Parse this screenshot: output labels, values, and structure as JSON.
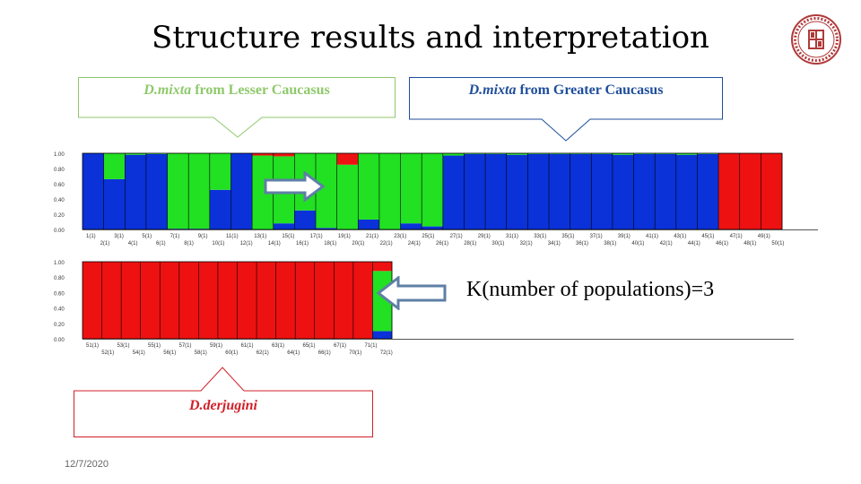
{
  "title": "Structure results and interpretation",
  "callouts": {
    "lesser": {
      "species": "D.mixta",
      "rest": " from Lesser Caucasus",
      "color": "#8fc96b"
    },
    "greater": {
      "species": "D.mixta",
      "rest": " from Greater Caucasus",
      "color": "#1f4e9c"
    },
    "derjugini": {
      "species": "D.derjugini",
      "color": "#d0212a"
    }
  },
  "k_text": "K(number of populations)=3",
  "date": "12/7/2020",
  "colors": {
    "blue": "#0a32d8",
    "green": "#22e022",
    "red": "#ee1111"
  },
  "chart_data": [
    {
      "type": "bar",
      "stacked": true,
      "y_ticks": [
        "1.00",
        "0.80",
        "0.60",
        "0.40",
        "0.20",
        "0.00"
      ],
      "ylim": [
        0,
        1
      ],
      "labels_row1": [
        "1(1)",
        "3(1)",
        "5(1)",
        "7(1)",
        "9(1)",
        "11(1)",
        "13(1)",
        "15(1)",
        "17(1)",
        "19(1)",
        "21(1)",
        "23(1)",
        "25(1)",
        "27(1)",
        "29(1)",
        "31(1)",
        "33(1)",
        "35(1)",
        "37(1)",
        "39(1)",
        "41(1)",
        "43(1)",
        "45(1)",
        "47(1)",
        "49(1)"
      ],
      "labels_row2": [
        "2(1)",
        "4(1)",
        "6(1)",
        "8(1)",
        "10(1)",
        "12(1)",
        "14(1)",
        "16(1)",
        "18(1)",
        "20(1)",
        "22(1)",
        "24(1)",
        "26(1)",
        "28(1)",
        "30(1)",
        "32(1)",
        "34(1)",
        "36(1)",
        "38(1)",
        "40(1)",
        "42(1)",
        "44(1)",
        "46(1)",
        "48(1)",
        "50(1)"
      ],
      "series": [
        {
          "name": "",
          "color": "#0a32d8",
          "values": [
            1.0,
            0.66,
            0.98,
            0.99,
            0.01,
            0.01,
            0.52,
            1.0,
            0.0,
            0.08,
            0.25,
            0.02,
            0.0,
            0.13,
            0.0,
            0.08,
            0.04,
            0.97,
            0.99,
            0.99,
            0.98,
            0.99,
            0.99,
            0.99,
            0.99,
            0.98,
            0.99,
            0.99,
            0.98,
            0.99,
            0.0,
            0.0,
            0.0
          ]
        },
        {
          "name": "",
          "color": "#22e022",
          "values": [
            0.0,
            0.34,
            0.02,
            0.01,
            0.99,
            0.99,
            0.48,
            0.0,
            0.97,
            0.88,
            0.75,
            0.98,
            0.85,
            0.87,
            1.0,
            0.92,
            0.96,
            0.03,
            0.01,
            0.01,
            0.02,
            0.01,
            0.01,
            0.01,
            0.01,
            0.02,
            0.01,
            0.01,
            0.02,
            0.01,
            0.0,
            0.0,
            0.0
          ]
        },
        {
          "name": "",
          "color": "#ee1111",
          "values": [
            0.0,
            0.0,
            0.0,
            0.0,
            0.0,
            0.0,
            0.0,
            0.0,
            0.03,
            0.04,
            0.0,
            0.0,
            0.15,
            0.0,
            0.0,
            0.0,
            0.0,
            0.0,
            0.0,
            0.0,
            0.0,
            0.0,
            0.0,
            0.0,
            0.0,
            0.0,
            0.0,
            0.0,
            0.0,
            0.0,
            1.0,
            1.0,
            1.0
          ]
        }
      ]
    },
    {
      "type": "bar",
      "stacked": true,
      "y_ticks": [
        "1.00",
        "0.80",
        "0.60",
        "0.40",
        "0.20",
        "0.00"
      ],
      "ylim": [
        0,
        1
      ],
      "labels_row1": [
        "51(1)",
        "53(1)",
        "55(1)",
        "57(1)",
        "59(1)",
        "61(1)",
        "63(1)",
        "65(1)",
        "67(1)",
        "71(1)"
      ],
      "labels_row2": [
        "52(1)",
        "54(1)",
        "56(1)",
        "58(1)",
        "60(1)",
        "62(1)",
        "64(1)",
        "66(1)",
        "70(1)",
        "72(1)"
      ],
      "series": [
        {
          "name": "",
          "color": "#0a32d8",
          "values": [
            0.0,
            0.0,
            0.0,
            0.0,
            0.0,
            0.0,
            0.0,
            0.0,
            0.0,
            0.0,
            0.0,
            0.0,
            0.0,
            0.0,
            0.0,
            0.1
          ]
        },
        {
          "name": "",
          "color": "#22e022",
          "values": [
            0.0,
            0.0,
            0.0,
            0.0,
            0.0,
            0.0,
            0.0,
            0.0,
            0.0,
            0.0,
            0.0,
            0.0,
            0.0,
            0.0,
            0.0,
            0.78
          ]
        },
        {
          "name": "",
          "color": "#ee1111",
          "values": [
            1.0,
            1.0,
            1.0,
            1.0,
            1.0,
            1.0,
            1.0,
            1.0,
            1.0,
            1.0,
            1.0,
            1.0,
            1.0,
            1.0,
            1.0,
            0.12
          ]
        }
      ]
    }
  ]
}
